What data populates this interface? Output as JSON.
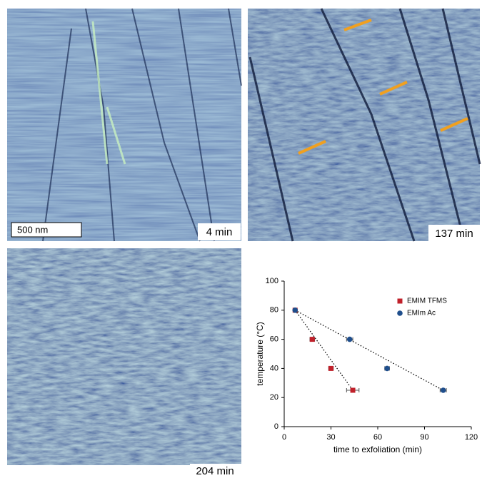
{
  "images": {
    "scale_bar": "500 nm",
    "labels": [
      "4 min",
      "137 min",
      "204 min"
    ]
  },
  "chart_data": {
    "type": "scatter",
    "x_label": "time to exfoliation (min)",
    "y_label": "temperature (°C)",
    "xlim": [
      0,
      120
    ],
    "xticks": [
      0,
      30,
      60,
      90,
      120
    ],
    "ylim": [
      0,
      100
    ],
    "yticks": [
      0,
      20,
      40,
      60,
      80,
      100
    ],
    "legend": "upper right",
    "trendlines": true,
    "series": [
      {
        "name": "EMIM TFMS",
        "color": "#c0202a",
        "marker": "square",
        "x": [
          7,
          18,
          30,
          44
        ],
        "values": [
          80,
          60,
          40,
          25
        ],
        "x_errors": [
          1,
          1.5,
          1.5,
          4
        ]
      },
      {
        "name": "EMIm Ac",
        "color": "#1f4e8c",
        "marker": "circle",
        "x": [
          7,
          42,
          66,
          102
        ],
        "values": [
          80,
          60,
          40,
          25
        ],
        "x_errors": [
          1,
          2,
          1.5,
          2
        ]
      }
    ]
  }
}
